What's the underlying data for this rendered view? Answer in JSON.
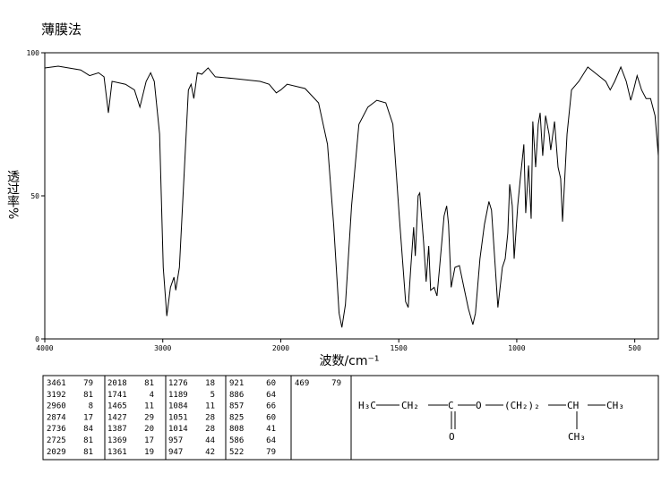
{
  "chart_data": {
    "type": "line",
    "title": "薄膜法",
    "ylabel": "透过率%",
    "xlabel": "波数/cm⁻¹",
    "xlim": [
      4000,
      400
    ],
    "x_break": 2000,
    "x_break_zoom": 2,
    "xticks": [
      4000,
      3000,
      2000,
      1500,
      1000,
      500
    ],
    "ylim": [
      0,
      100
    ],
    "yticks": [
      0,
      50,
      100
    ],
    "x": [
      4000,
      3886,
      3696,
      3620,
      3544,
      3498,
      3461,
      3430,
      3316,
      3240,
      3194,
      3141,
      3103,
      3072,
      3027,
      2996,
      2966,
      2935,
      2905,
      2890,
      2859,
      2821,
      2783,
      2760,
      2737,
      2707,
      2669,
      2616,
      2555,
      2403,
      2175,
      2099,
      2038,
      2000,
      1973,
      1897,
      1840,
      1802,
      1776,
      1753,
      1741,
      1726,
      1700,
      1669,
      1631,
      1593,
      1555,
      1525,
      1498,
      1471,
      1460,
      1449,
      1437,
      1430,
      1418,
      1411,
      1395,
      1384,
      1373,
      1365,
      1350,
      1338,
      1327,
      1308,
      1297,
      1289,
      1278,
      1262,
      1243,
      1224,
      1205,
      1186,
      1175,
      1156,
      1137,
      1118,
      1107,
      1091,
      1080,
      1061,
      1049,
      1038,
      1030,
      1019,
      1011,
      996,
      985,
      970,
      962,
      950,
      939,
      932,
      920,
      909,
      901,
      890,
      878,
      863,
      856,
      840,
      825,
      814,
      806,
      787,
      768,
      737,
      699,
      661,
      623,
      604,
      585,
      559,
      536,
      517,
      505,
      490,
      471,
      452,
      433,
      414,
      400
    ],
    "series": [
      {
        "color": "#000000",
        "values": [
          94.7,
          95.3,
          94,
          92,
          93,
          91.6,
          79,
          90,
          89,
          87,
          81,
          90,
          93,
          90,
          71.6,
          25,
          8,
          18,
          21.6,
          17,
          25,
          56,
          87,
          89,
          84,
          93,
          92.5,
          94.7,
          91.6,
          91,
          90,
          89,
          86,
          87,
          89,
          87.5,
          82.5,
          68,
          40,
          9,
          4,
          12,
          46.5,
          75,
          81,
          83.4,
          82.5,
          75,
          43,
          13,
          11,
          25,
          39,
          29,
          50,
          51,
          34,
          20,
          32.5,
          17,
          18,
          15,
          25,
          43,
          46.5,
          40,
          18,
          25,
          25.6,
          18,
          10.6,
          5,
          9,
          28,
          40,
          48,
          45,
          25,
          11,
          25,
          28,
          37,
          54,
          46.5,
          28,
          46.5,
          56,
          68,
          44,
          60.6,
          42,
          76,
          60,
          75,
          79,
          64,
          78,
          71.5,
          66,
          76,
          60,
          56,
          41,
          71.5,
          87,
          90,
          95,
          92.5,
          90,
          87,
          90,
          95,
          90,
          83.4,
          87,
          92,
          87,
          84,
          84,
          78,
          64
        ]
      }
    ]
  },
  "peak_table": [
    [
      [
        3461,
        79
      ],
      [
        3192,
        81
      ],
      [
        2960,
        8
      ],
      [
        2874,
        17
      ],
      [
        2736,
        84
      ],
      [
        2725,
        81
      ],
      [
        2029,
        81
      ]
    ],
    [
      [
        2018,
        81
      ],
      [
        1741,
        4
      ],
      [
        1465,
        11
      ],
      [
        1427,
        29
      ],
      [
        1387,
        20
      ],
      [
        1369,
        17
      ],
      [
        1361,
        19
      ]
    ],
    [
      [
        1276,
        18
      ],
      [
        1189,
        5
      ],
      [
        1084,
        11
      ],
      [
        1051,
        28
      ],
      [
        1014,
        28
      ],
      [
        957,
        44
      ],
      [
        947,
        42
      ]
    ],
    [
      [
        921,
        60
      ],
      [
        886,
        64
      ],
      [
        857,
        66
      ],
      [
        825,
        60
      ],
      [
        808,
        41
      ],
      [
        586,
        64
      ],
      [
        522,
        79
      ]
    ],
    [
      [
        469,
        79
      ]
    ]
  ],
  "structure": {
    "main": [
      "H₃C",
      "CH₂",
      "C",
      "O",
      "(CH₂)₂",
      "CH",
      "CH₃"
    ],
    "carbonyl": "O",
    "branch": "CH₃"
  }
}
